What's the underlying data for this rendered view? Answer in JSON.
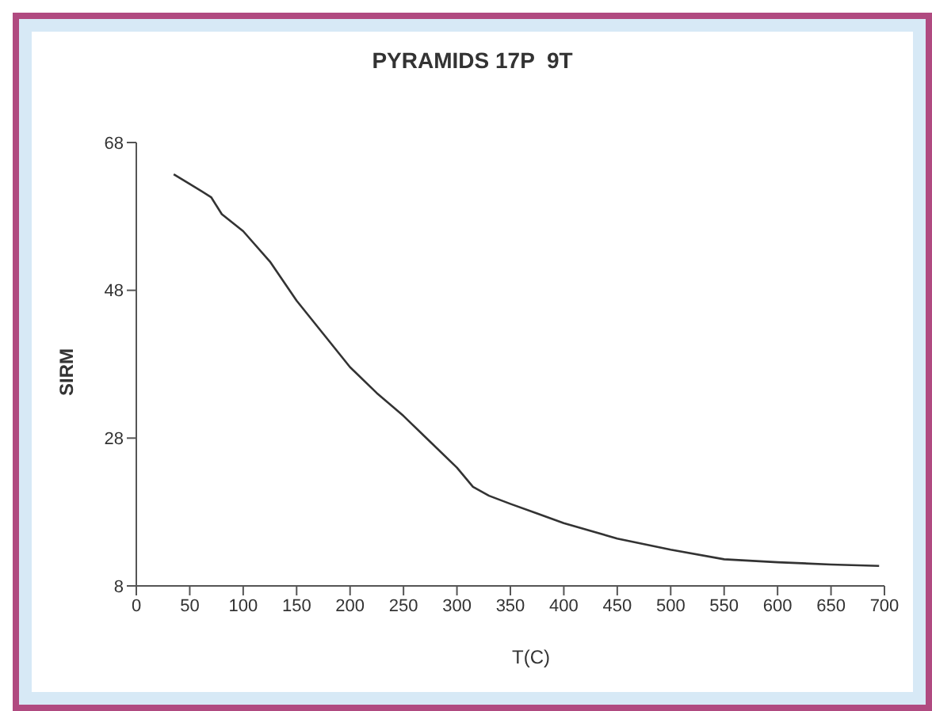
{
  "chart_data": {
    "type": "line",
    "title": "PYRAMIDS 17P  9T",
    "xlabel": "T(C)",
    "ylabel": "SIRM",
    "x": [
      35,
      50,
      70,
      80,
      100,
      125,
      150,
      175,
      200,
      225,
      250,
      275,
      300,
      315,
      330,
      350,
      375,
      400,
      450,
      500,
      550,
      600,
      650,
      695
    ],
    "series": [
      {
        "color": "#333333",
        "values": [
          63.7,
          62.4,
          60.6,
          58.3,
          56.0,
          51.9,
          46.6,
          42.1,
          37.6,
          34.1,
          31.0,
          27.5,
          24.0,
          21.4,
          20.2,
          19.1,
          17.8,
          16.5,
          14.4,
          12.9,
          11.6,
          11.2,
          10.9,
          10.7
        ]
      }
    ],
    "xlim": [
      0,
      700
    ],
    "xticks": [
      0,
      50,
      100,
      150,
      200,
      250,
      300,
      350,
      400,
      450,
      500,
      550,
      600,
      650,
      700
    ],
    "ylim": [
      8,
      68
    ],
    "yticks": [
      8,
      28,
      48,
      68
    ],
    "grid": false,
    "legend": false,
    "marker": "none",
    "line_style": "solid"
  }
}
